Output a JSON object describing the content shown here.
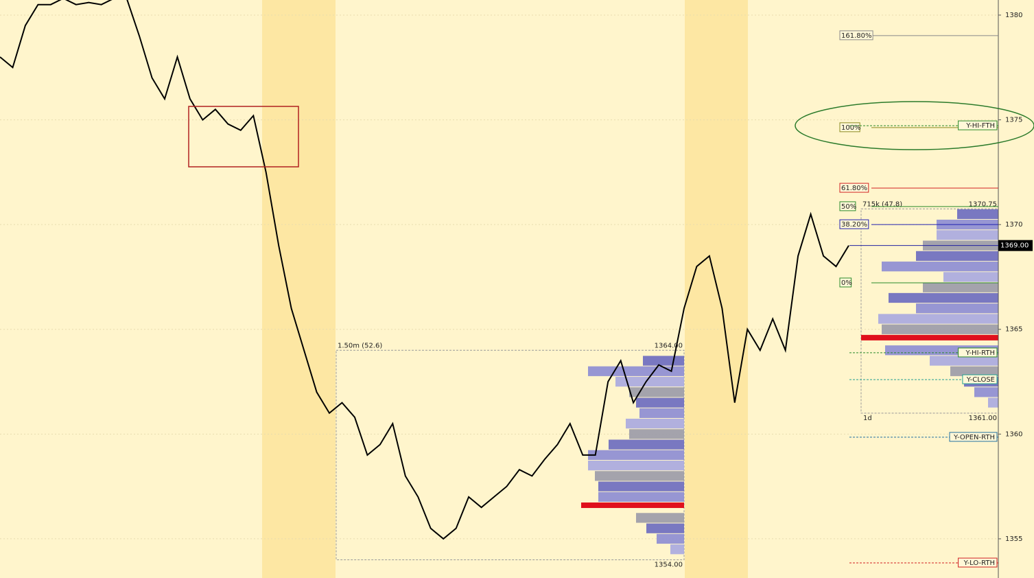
{
  "chart_data": {
    "type": "line",
    "ylim": [
      1353.13,
      1380.72
    ],
    "yticks": [
      1355,
      1360,
      1365,
      1370,
      1375,
      1380
    ],
    "grid": true,
    "color": "#000000",
    "values": [
      1378.0,
      1377.5,
      1379.5,
      1380.5,
      1380.5,
      1380.8,
      1380.5,
      1380.6,
      1380.5,
      1380.8,
      1380.8,
      1379.0,
      1377.0,
      1376.0,
      1378.0,
      1376.0,
      1375.0,
      1375.5,
      1374.8,
      1374.5,
      1375.2,
      1372.5,
      1369.0,
      1366.0,
      1364.0,
      1362.0,
      1361.0,
      1361.5,
      1360.8,
      1359.0,
      1359.5,
      1360.5,
      1358.0,
      1357.0,
      1355.5,
      1355.0,
      1355.5,
      1357.0,
      1356.5,
      1357.0,
      1357.5,
      1358.3,
      1358.0,
      1358.8,
      1359.5,
      1360.5,
      1359.0,
      1359.0,
      1362.5,
      1363.5,
      1361.5,
      1362.5,
      1363.3,
      1363.0,
      1366.0,
      1368.0,
      1368.5,
      1366.0,
      1361.5,
      1365.0,
      1364.0,
      1365.5,
      1364.0,
      1368.5,
      1370.5,
      1368.5,
      1368.0,
      1369.0
    ],
    "last_price": {
      "value": 1369,
      "label": "1369.00"
    },
    "fib_levels": [
      {
        "label": "161.80%",
        "value": 1379.02,
        "color": "#888888"
      },
      {
        "label": "100%",
        "value": 1374.63,
        "color": "#8a8a20"
      },
      {
        "label": "61.80%",
        "value": 1371.74,
        "color": "#d02020"
      },
      {
        "label": "50%",
        "value": 1370.86,
        "color": "#2a8a2a"
      },
      {
        "label": "38.20%",
        "value": 1370.0,
        "color": "#2020b0"
      },
      {
        "label": "0%",
        "value": 1367.22,
        "color": "#2a8a2a"
      }
    ],
    "key_levels": [
      {
        "label": "Y-HI-FTH",
        "value": 1374.72,
        "color": "#2a8a2a"
      },
      {
        "label": "Y-HI-RTH",
        "value": 1363.88,
        "color": "#2a8a2a"
      },
      {
        "label": "Y-CLOSE",
        "value": 1362.6,
        "color": "#20a090"
      },
      {
        "label": "Y-OPEN-RTH",
        "value": 1359.85,
        "color": "#2070a0"
      },
      {
        "label": "Y-LO-RTH",
        "value": 1353.85,
        "color": "#d02020"
      }
    ],
    "profiles": [
      {
        "label": "1.50m (52.6)",
        "high": {
          "value": 1364,
          "label": "1364.00"
        },
        "low": {
          "value": 1354,
          "label": "1354.00"
        },
        "poc": 1356.5,
        "levels": [
          1363.5,
          1363,
          1362.5,
          1362,
          1361.5,
          1361,
          1360.5,
          1360,
          1359.5,
          1359,
          1358.5,
          1358,
          1357.5,
          1357,
          1356.5,
          1356,
          1355.5,
          1355,
          1354.5
        ],
        "volumes": [
          60,
          140,
          100,
          80,
          70,
          65,
          85,
          80,
          110,
          140,
          140,
          130,
          125,
          125,
          150,
          70,
          55,
          40,
          20
        ]
      },
      {
        "label": "715k (47.8)",
        "high": {
          "value": 1370.75,
          "label": "1370.75"
        },
        "low": {
          "value": 1361,
          "label": "1361.00"
        },
        "period": "1d",
        "poc": 1364.5,
        "levels": [
          1370.5,
          1370,
          1369.5,
          1369,
          1368.5,
          1368,
          1367.5,
          1367,
          1366.5,
          1366,
          1365.5,
          1365,
          1364.5,
          1364,
          1363.5,
          1363,
          1362.5,
          1362,
          1361.5
        ],
        "volumes": [
          60,
          90,
          90,
          110,
          120,
          170,
          80,
          110,
          160,
          120,
          175,
          170,
          200,
          165,
          100,
          70,
          50,
          35,
          15
        ]
      }
    ]
  }
}
